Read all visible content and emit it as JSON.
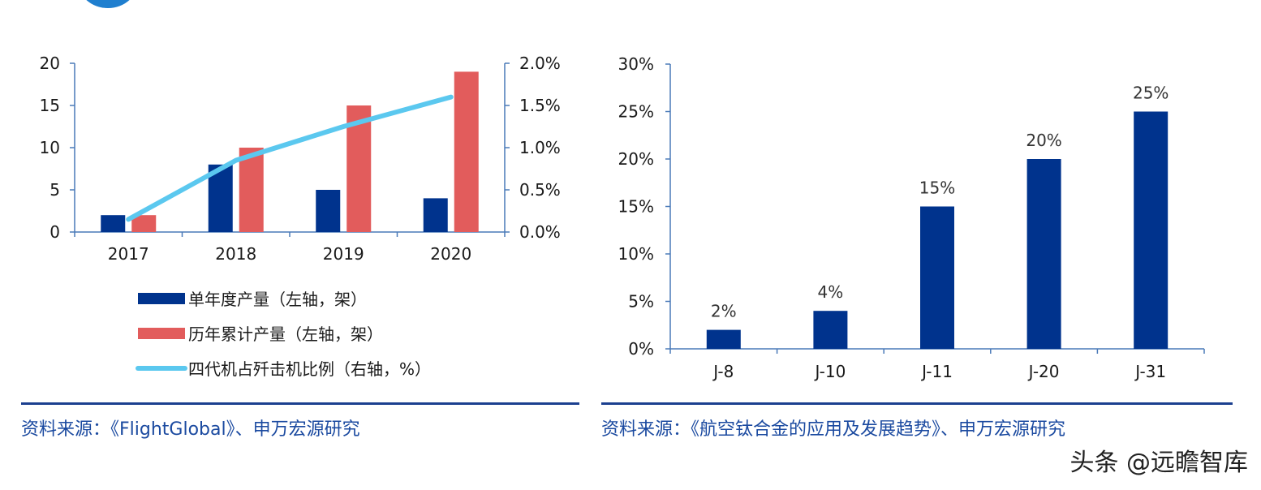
{
  "chart_data": [
    {
      "type": "bar",
      "categories": [
        "2017",
        "2018",
        "2019",
        "2020"
      ],
      "series": [
        {
          "name": "单年度产量（左轴，架）",
          "type": "bar",
          "axis": "left",
          "color": "#00338d",
          "values": [
            2,
            8,
            5,
            4
          ]
        },
        {
          "name": "历年累计产量（左轴，架）",
          "type": "bar",
          "axis": "left",
          "color": "#e25c5c",
          "values": [
            2,
            10,
            15,
            19
          ]
        },
        {
          "name": "四代机占歼击机比例（右轴，%）",
          "type": "line",
          "axis": "right",
          "color": "#5bc8ef",
          "values": [
            0.15,
            0.85,
            1.25,
            1.6
          ]
        }
      ],
      "ylim_left": [
        0,
        20
      ],
      "yticks_left": [
        "0",
        "5",
        "10",
        "15",
        "20"
      ],
      "ylim_right": [
        0,
        2.0
      ],
      "yticks_right": [
        "0.0%",
        "0.5%",
        "1.0%",
        "1.5%",
        "2.0%"
      ],
      "legend_position": "bottom",
      "source": "资料来源：《FlightGlobal》、申万宏源研究"
    },
    {
      "type": "bar",
      "categories": [
        "J-8",
        "J-10",
        "J-11",
        "J-20",
        "J-31"
      ],
      "values": [
        2,
        4,
        15,
        20,
        25
      ],
      "data_labels": [
        "2%",
        "4%",
        "15%",
        "20%",
        "25%"
      ],
      "color": "#00338d",
      "ylim": [
        0,
        30
      ],
      "yticks": [
        "0%",
        "5%",
        "10%",
        "15%",
        "20%",
        "25%",
        "30%"
      ],
      "source": "资料来源：《航空钛合金的应用及发展趋势》、申万宏源研究"
    }
  ],
  "watermark": "头条 @远瞻智库"
}
